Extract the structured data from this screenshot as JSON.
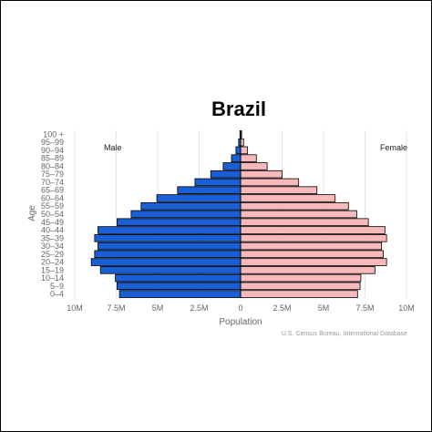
{
  "chart_data": {
    "type": "bar",
    "title": "Brazil",
    "xlabel": "Population",
    "ylabel": "Age",
    "source": "U.S. Census Bureau, International Database",
    "age_groups": [
      "0–4",
      "5–9",
      "10–14",
      "15–19",
      "20–24",
      "25–29",
      "30–34",
      "35–39",
      "40–44",
      "45–49",
      "50–54",
      "55–59",
      "60–64",
      "65–69",
      "70–74",
      "75–79",
      "80–84",
      "85–89",
      "90–94",
      "95–99",
      "100 +"
    ],
    "series": [
      {
        "name": "Male",
        "color": "#1a5fd6",
        "values": [
          7.3,
          7.45,
          7.55,
          8.45,
          9.0,
          8.8,
          8.6,
          8.8,
          8.6,
          7.45,
          6.6,
          6.0,
          5.05,
          3.8,
          2.75,
          1.8,
          1.05,
          0.55,
          0.28,
          0.12,
          0.04
        ]
      },
      {
        "name": "Female",
        "color": "#f7b9b9",
        "values": [
          7.05,
          7.2,
          7.25,
          8.1,
          8.8,
          8.6,
          8.5,
          8.8,
          8.7,
          7.7,
          7.0,
          6.5,
          5.7,
          4.6,
          3.5,
          2.5,
          1.6,
          0.95,
          0.42,
          0.18,
          0.06
        ]
      }
    ],
    "units": "millions",
    "xlim": [
      -10,
      10
    ],
    "x_ticks": [
      "10M",
      "7.5M",
      "5M",
      "2.5M",
      "0",
      "2.5M",
      "5M",
      "7.5M",
      "10M"
    ],
    "legend": {
      "left": "Male",
      "right": "Female"
    },
    "grid": true
  }
}
